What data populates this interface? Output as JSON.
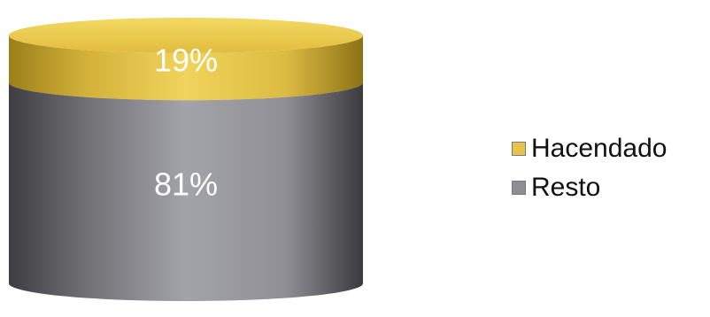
{
  "chart_data": {
    "type": "stacked-cylinder",
    "title": "",
    "series": [
      {
        "name": "Hacendado",
        "value": 19,
        "label": "19%",
        "color": "#e8c24a"
      },
      {
        "name": "Resto",
        "value": 81,
        "label": "81%",
        "color": "#8e8e93"
      }
    ],
    "legend_position": "right"
  }
}
